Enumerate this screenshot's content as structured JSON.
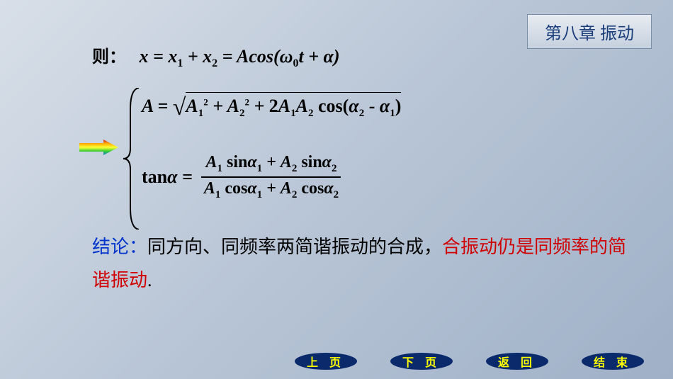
{
  "chapter_title": "第八章 振动",
  "line1": {
    "prefix": "则：",
    "formula_html": "x = x<sub>1</sub> + x<sub>2</sub> = Acos(ω<sub>0</sub>t + α)"
  },
  "formulaA": {
    "lhs": "A =",
    "sqrt_content_html": " A<sub>1</sub><sup>2</sup> + A<sub>2</sub><sup>2</sup> + <span class=\"fn\">2</span>A<sub>1</sub>A<sub>2</sub> <span class=\"fn\">cos(</span>α<sub>2</sub> <span class=\"fn\">-</span> α<sub>1</sub><span class=\"fn\">)</span>"
  },
  "formulaTan": {
    "lhs_html": "<span class=\"fn\">tan</span>α =",
    "numer_html": "A<sub>1</sub> <span class=\"fn\">sin</span>α<sub>1</sub> + A<sub>2</sub> <span class=\"fn\">sin</span>α<sub>2</sub>",
    "denom_html": "A<sub>1</sub> <span class=\"fn\">cos</span>α<sub>1</sub> + A<sub>2</sub> <span class=\"fn\">cos</span>α<sub>2</sub>"
  },
  "conclusion": {
    "label": "结论：",
    "text_black": "同方向、同频率两简谐振动的合成，",
    "text_red": "合振动仍是同频率的简谐振动",
    "period": "."
  },
  "nav": {
    "items": [
      "上 页",
      "下 页",
      "返 回",
      "结 束"
    ]
  },
  "colors": {
    "chapter_text": "#1a3d7a",
    "conclusion_blue": "#0033cc",
    "conclusion_red": "#d00000",
    "nav_fill": "#0a2a6b",
    "nav_text": "#ffff00",
    "arrow_gradient": [
      "#d11f1f",
      "#ffaa00",
      "#ffff33",
      "#33cc33",
      "#1e7dd6"
    ]
  }
}
